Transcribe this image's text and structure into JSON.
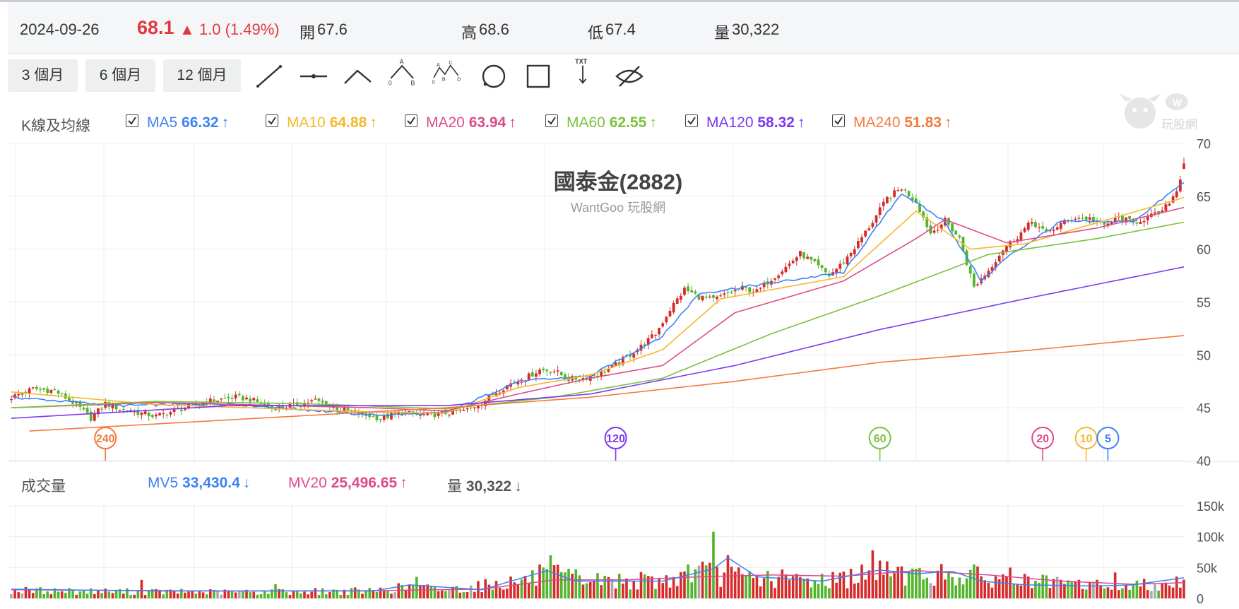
{
  "quote": {
    "date": "2024-09-26",
    "price": "68.1",
    "change": "▲ 1.0 (1.49%)",
    "open_label": "開",
    "open": "67.6",
    "high_label": "高",
    "high": "68.6",
    "low_label": "低",
    "low": "67.4",
    "vol_label": "量",
    "volume": "30,322"
  },
  "ranges": [
    "3 個月",
    "6 個月",
    "12 個月"
  ],
  "tools": [
    "line-tool-icon",
    "horizontal-line-tool-icon",
    "angle-tool-icon",
    "abc-pattern-tool-icon",
    "abcd-pattern-tool-icon",
    "circle-tool-icon",
    "rectangle-tool-icon",
    "text-arrow-tool-icon",
    "hide-eye-icon"
  ],
  "colors": {
    "ma5": "#3b82f6",
    "ma10": "#f5b82e",
    "ma20": "#dd4b8c",
    "ma60": "#7cc13b",
    "ma120": "#7c3aed",
    "ma240": "#f47a3f",
    "up": "#d62b2b",
    "down": "#52b52b",
    "flat": "#aaaaaa",
    "grid": "#ececec",
    "axis_text": "#555555"
  },
  "ma_panel": {
    "label": "K線及均線",
    "items": [
      {
        "name": "MA5",
        "value": "66.32",
        "color": "#3b82f6",
        "dir": "up"
      },
      {
        "name": "MA10",
        "value": "64.88",
        "color": "#f5b82e",
        "dir": "up"
      },
      {
        "name": "MA20",
        "value": "63.94",
        "color": "#dd4b8c",
        "dir": "up"
      },
      {
        "name": "MA60",
        "value": "62.55",
        "color": "#7cc13b",
        "dir": "up"
      },
      {
        "name": "MA120",
        "value": "58.32",
        "color": "#7c3aed",
        "dir": "up"
      },
      {
        "name": "MA240",
        "value": "51.83",
        "color": "#f47a3f",
        "dir": "up"
      }
    ]
  },
  "vol_panel": {
    "label": "成交量",
    "items": [
      {
        "name": "MV5",
        "value": "33,430.4",
        "color": "#3b82f6",
        "dir": "down"
      },
      {
        "name": "MV20",
        "value": "25,496.65",
        "color": "#dd4b8c",
        "dir": "up"
      },
      {
        "name": "量",
        "value": "30,322",
        "color": "#555555",
        "dir": "down"
      }
    ]
  },
  "watermark": {
    "title": "國泰金(2882)",
    "subtitle": "WantGoo 玩股網",
    "logo_text": "玩股網"
  },
  "chart_data": [
    {
      "type": "candlestick",
      "title": "國泰金(2882)",
      "ylim": [
        40,
        70
      ],
      "yticks": [
        40,
        45,
        50,
        55,
        60,
        65,
        70
      ],
      "n": 240,
      "price_anchors": [
        [
          0,
          46.0
        ],
        [
          6,
          46.8
        ],
        [
          12,
          46.6
        ],
        [
          18,
          45.3
        ],
        [
          22,
          44.0
        ],
        [
          26,
          45.4
        ],
        [
          30,
          44.9
        ],
        [
          40,
          44.2
        ],
        [
          46,
          44.8
        ],
        [
          54,
          45.6
        ],
        [
          62,
          46.0
        ],
        [
          66,
          45.8
        ],
        [
          72,
          45.0
        ],
        [
          78,
          45.2
        ],
        [
          84,
          45.7
        ],
        [
          90,
          44.9
        ],
        [
          96,
          44.5
        ],
        [
          102,
          44.0
        ],
        [
          108,
          44.6
        ],
        [
          112,
          44.3
        ],
        [
          118,
          44.4
        ],
        [
          122,
          44.6
        ],
        [
          126,
          44.8
        ],
        [
          130,
          45.5
        ],
        [
          134,
          46.5
        ],
        [
          138,
          47.3
        ],
        [
          142,
          47.8
        ],
        [
          146,
          48.6
        ],
        [
          150,
          48.5
        ],
        [
          154,
          47.7
        ],
        [
          158,
          47.8
        ],
        [
          162,
          48.2
        ],
        [
          166,
          48.8
        ],
        [
          170,
          49.8
        ],
        [
          174,
          50.8
        ],
        [
          178,
          52.0
        ],
        [
          182,
          54.3
        ],
        [
          186,
          56.2
        ],
        [
          190,
          55.5
        ],
        [
          194,
          55.2
        ],
        [
          198,
          55.8
        ],
        [
          202,
          56.3
        ],
        [
          206,
          56.0
        ],
        [
          210,
          57.2
        ],
        [
          214,
          58.3
        ],
        [
          218,
          59.6
        ],
        [
          222,
          58.6
        ],
        [
          226,
          57.5
        ],
        [
          230,
          58.8
        ],
        [
          234,
          60.6
        ],
        [
          238,
          62.6
        ],
        [
          242,
          64.8
        ],
        [
          246,
          65.8
        ],
        [
          250,
          64.5
        ],
        [
          254,
          61.5
        ],
        [
          258,
          62.7
        ],
        [
          262,
          61.0
        ],
        [
          266,
          56.4
        ],
        [
          270,
          58.0
        ],
        [
          274,
          60.0
        ],
        [
          278,
          61.2
        ],
        [
          282,
          62.6
        ],
        [
          286,
          61.5
        ],
        [
          290,
          62.4
        ],
        [
          294,
          63.0
        ],
        [
          298,
          62.9
        ],
        [
          302,
          62.2
        ],
        [
          306,
          63.0
        ],
        [
          310,
          62.5
        ],
        [
          314,
          63.0
        ],
        [
          318,
          63.5
        ],
        [
          322,
          65.5
        ],
        [
          324,
          68.1
        ]
      ],
      "ma_anchors": {
        "MA5": [
          [
            0,
            46.0
          ],
          [
            30,
            45.2
          ],
          [
            60,
            45.4
          ],
          [
            100,
            44.3
          ],
          [
            120,
            44.5
          ],
          [
            140,
            47.5
          ],
          [
            160,
            48.0
          ],
          [
            180,
            51.8
          ],
          [
            190,
            55.8
          ],
          [
            210,
            56.8
          ],
          [
            230,
            57.8
          ],
          [
            246,
            65.3
          ],
          [
            258,
            62.6
          ],
          [
            268,
            57.0
          ],
          [
            275,
            59.2
          ],
          [
            290,
            62.6
          ],
          [
            310,
            62.6
          ],
          [
            324,
            66.32
          ]
        ],
        "MA10": [
          [
            0,
            46.5
          ],
          [
            40,
            45.3
          ],
          [
            100,
            44.6
          ],
          [
            120,
            44.5
          ],
          [
            140,
            46.9
          ],
          [
            160,
            48.1
          ],
          [
            180,
            50.5
          ],
          [
            196,
            55.3
          ],
          [
            230,
            57.4
          ],
          [
            250,
            63.6
          ],
          [
            265,
            60.0
          ],
          [
            280,
            60.5
          ],
          [
            300,
            62.5
          ],
          [
            324,
            64.88
          ]
        ],
        "MA20": [
          [
            0,
            45.0
          ],
          [
            40,
            45.5
          ],
          [
            100,
            45.0
          ],
          [
            120,
            44.7
          ],
          [
            140,
            46.3
          ],
          [
            160,
            47.8
          ],
          [
            180,
            49.0
          ],
          [
            200,
            54.0
          ],
          [
            230,
            57.0
          ],
          [
            250,
            61.0
          ],
          [
            258,
            62.8
          ],
          [
            275,
            60.6
          ],
          [
            300,
            62.0
          ],
          [
            324,
            63.94
          ]
        ],
        "MA60": [
          [
            0,
            45.0
          ],
          [
            40,
            45.6
          ],
          [
            80,
            45.4
          ],
          [
            120,
            44.9
          ],
          [
            150,
            46.0
          ],
          [
            180,
            47.8
          ],
          [
            210,
            52.0
          ],
          [
            240,
            55.6
          ],
          [
            270,
            59.5
          ],
          [
            300,
            61.0
          ],
          [
            324,
            62.55
          ]
        ],
        "MA120": [
          [
            0,
            44.0
          ],
          [
            60,
            45.2
          ],
          [
            120,
            45.2
          ],
          [
            160,
            46.3
          ],
          [
            200,
            49.0
          ],
          [
            240,
            52.4
          ],
          [
            280,
            55.3
          ],
          [
            324,
            58.32
          ]
        ],
        "MA240": [
          [
            5,
            42.8
          ],
          [
            120,
            45.0
          ],
          [
            160,
            46.0
          ],
          [
            200,
            47.5
          ],
          [
            240,
            49.3
          ],
          [
            280,
            50.4
          ],
          [
            324,
            51.83
          ]
        ]
      },
      "ma_markers": [
        {
          "label": "240",
          "bar": 26,
          "color": "#f47a3f"
        },
        {
          "label": "120",
          "bar": 167,
          "color": "#7c3aed"
        },
        {
          "label": "60",
          "bar": 240,
          "color": "#7cc13b"
        },
        {
          "label": "20",
          "bar": 285,
          "color": "#dd4b8c"
        },
        {
          "label": "10",
          "bar": 297,
          "color": "#f5b82e"
        },
        {
          "label": "5",
          "bar": 303,
          "color": "#3b82f6"
        }
      ]
    },
    {
      "type": "bar",
      "title": "成交量",
      "ylim": [
        0,
        150000
      ],
      "yticks": [
        0,
        50000,
        100000,
        150000
      ],
      "ytick_labels": [
        "0",
        "50k",
        "100k",
        "150k"
      ],
      "vol_anchors": [
        [
          0,
          14000
        ],
        [
          30,
          12000
        ],
        [
          60,
          11000
        ],
        [
          100,
          13000
        ],
        [
          110,
          20000
        ],
        [
          120,
          15000
        ],
        [
          140,
          30000
        ],
        [
          150,
          40000
        ],
        [
          160,
          32000
        ],
        [
          180,
          30000
        ],
        [
          190,
          45000
        ],
        [
          200,
          38000
        ],
        [
          220,
          32000
        ],
        [
          230,
          35000
        ],
        [
          240,
          45000
        ],
        [
          250,
          40000
        ],
        [
          260,
          42000
        ],
        [
          270,
          35000
        ],
        [
          290,
          25000
        ],
        [
          310,
          22000
        ],
        [
          324,
          30322
        ]
      ],
      "spikes": [
        [
          36,
          30000
        ],
        [
          73,
          23000
        ],
        [
          112,
          35000
        ],
        [
          146,
          55000
        ],
        [
          149,
          70000
        ],
        [
          187,
          55000
        ],
        [
          194,
          108000
        ],
        [
          198,
          70000
        ],
        [
          232,
          48000
        ],
        [
          238,
          78000
        ],
        [
          242,
          60000
        ],
        [
          246,
          52000
        ],
        [
          250,
          48000
        ],
        [
          256,
          45000
        ],
        [
          266,
          55000
        ],
        [
          276,
          50000
        ],
        [
          305,
          42000
        ]
      ],
      "mv5_anchors": [
        [
          0,
          15000
        ],
        [
          40,
          12000
        ],
        [
          100,
          12000
        ],
        [
          110,
          22000
        ],
        [
          130,
          14000
        ],
        [
          148,
          45000
        ],
        [
          156,
          28000
        ],
        [
          180,
          28000
        ],
        [
          194,
          48000
        ],
        [
          198,
          66000
        ],
        [
          206,
          35000
        ],
        [
          224,
          28000
        ],
        [
          240,
          46000
        ],
        [
          250,
          40000
        ],
        [
          260,
          44000
        ],
        [
          268,
          28000
        ],
        [
          280,
          22000
        ],
        [
          300,
          20000
        ],
        [
          310,
          22000
        ],
        [
          324,
          33430
        ]
      ],
      "mv20_anchors": [
        [
          0,
          14000
        ],
        [
          60,
          12000
        ],
        [
          100,
          12500
        ],
        [
          130,
          15000
        ],
        [
          150,
          30000
        ],
        [
          170,
          30000
        ],
        [
          190,
          35000
        ],
        [
          210,
          38000
        ],
        [
          230,
          36000
        ],
        [
          250,
          45000
        ],
        [
          270,
          38000
        ],
        [
          290,
          28000
        ],
        [
          310,
          23000
        ],
        [
          324,
          25497
        ]
      ]
    }
  ]
}
